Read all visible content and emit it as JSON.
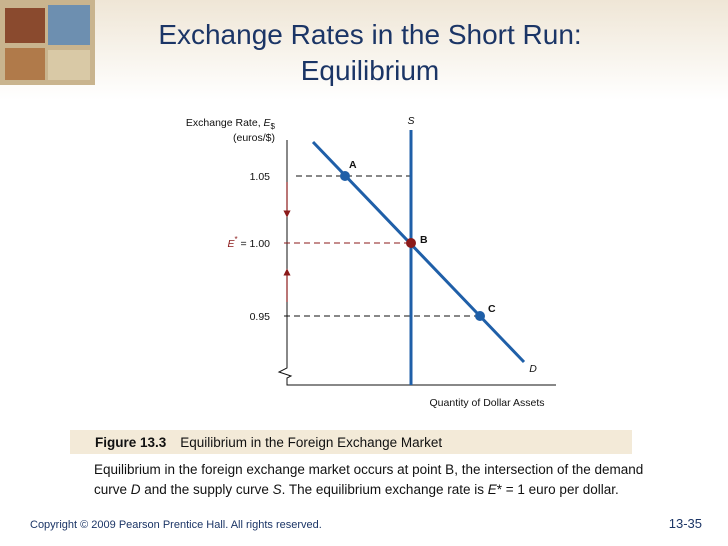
{
  "header": {
    "title_lines": [
      "Exchange Rates in the Short Run:",
      "Equilibrium"
    ]
  },
  "figure": {
    "y_axis_label": {
      "text": "Exchange Rate, ",
      "symbol": "E",
      "subscript": "$",
      "unit": "(euros/$)"
    },
    "levels": {
      "high": "1.05",
      "equilibrium_symbol": "E",
      "equilibrium_superscript": "*",
      "equilibrium": " = 1.00",
      "low": "0.95"
    },
    "x_axis_label": "Quantity of Dollar Assets",
    "curves": {
      "supply": "S",
      "demand": "D"
    },
    "points": [
      "A",
      "B",
      "C"
    ]
  },
  "caption": {
    "label": "Figure 13.3",
    "title": "Equilibrium in the Foreign Exchange Market",
    "lines": [
      [
        "Equilibrium in the foreign exchange market occurs at point B, the intersection of the demand"
      ],
      [
        "curve ",
        "D",
        " and the supply curve ",
        "S",
        ". The equilibrium exchange rate is ",
        "E",
        "* = 1 euro per dollar."
      ]
    ]
  },
  "footer": {
    "copyright": "Copyright © 2009 Pearson Prentice Hall. All rights reserved.",
    "slide_number": "13-35"
  }
}
